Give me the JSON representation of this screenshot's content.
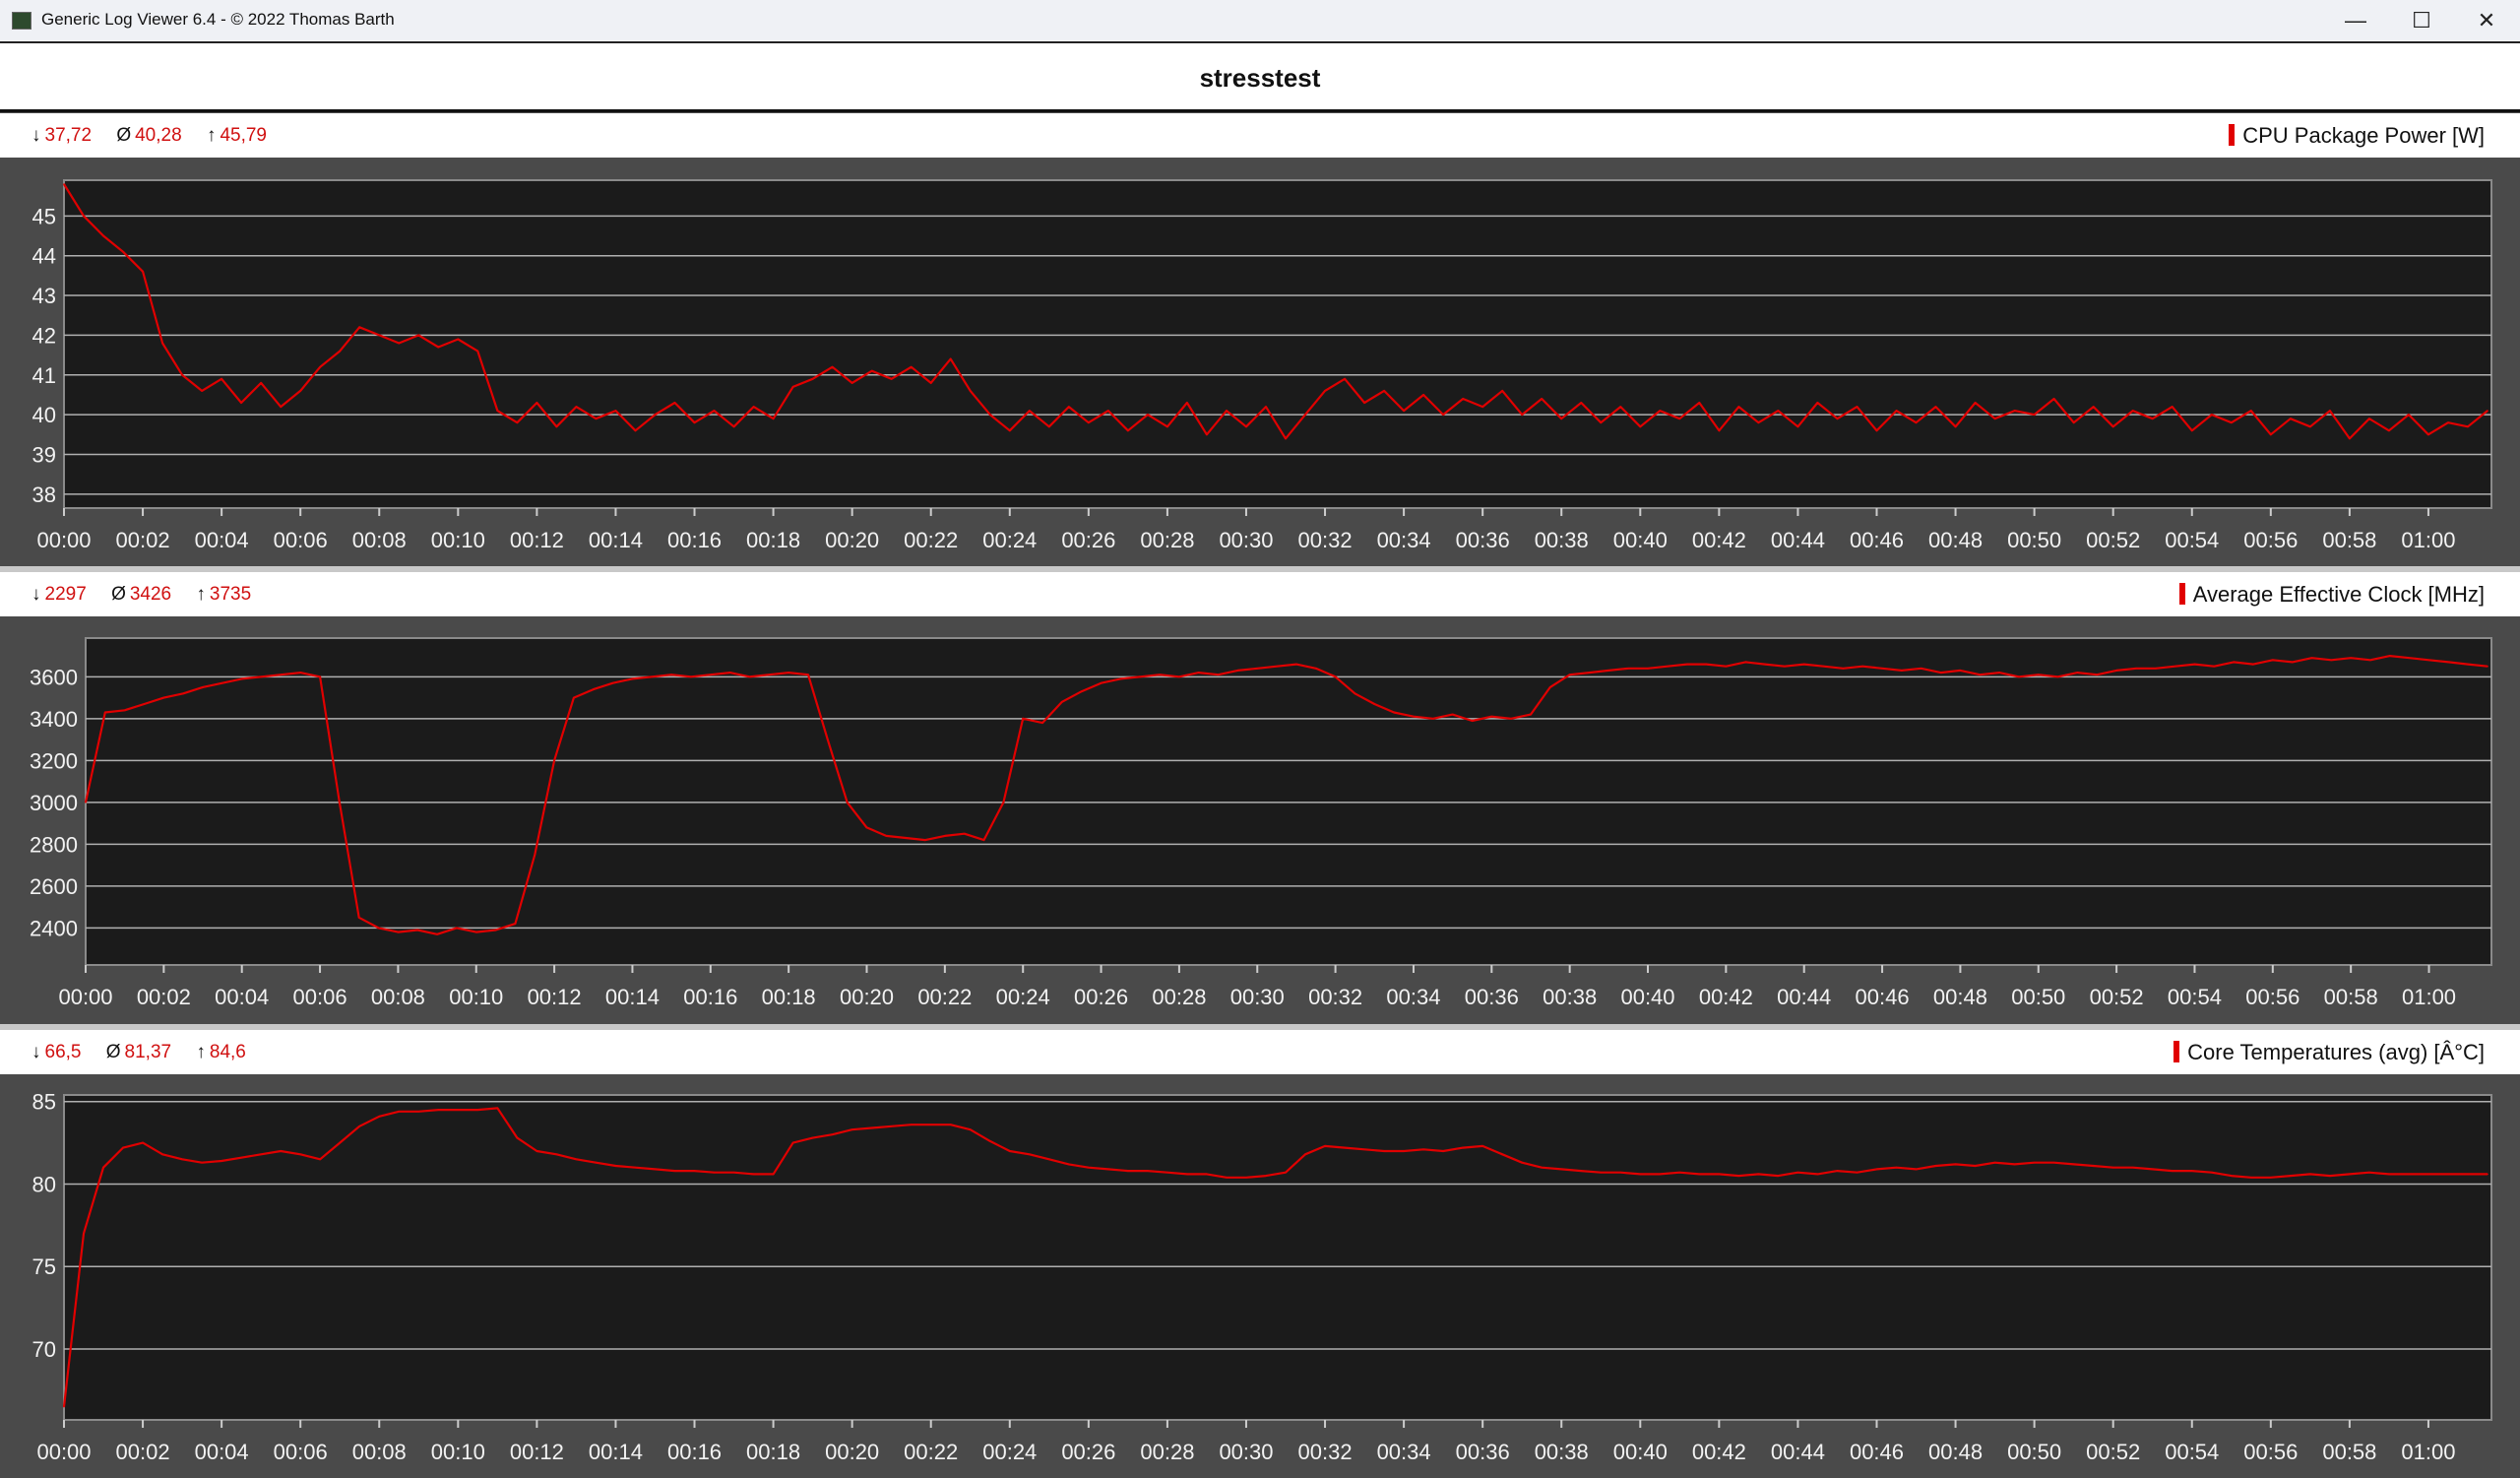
{
  "window": {
    "title": "Generic Log Viewer 6.4 - © 2022 Thomas Barth",
    "controls": {
      "minimize": "—",
      "maximize": "☐",
      "close": "✕"
    }
  },
  "chart_title": "stresstest",
  "colors": {
    "series": "#e00000",
    "plot_bg": "#1b1b1b",
    "panel_bg": "#4a4a4a",
    "grid": "#b0b0b0",
    "stat_values": "#d01010"
  },
  "chart_data": [
    {
      "type": "line",
      "title": "CPU Package Power [W]",
      "stats": {
        "min_symbol": "↓",
        "min": "37,72",
        "avg_symbol": "Ø",
        "avg": "40,28",
        "max_symbol": "↑",
        "max": "45,79"
      },
      "ylim": [
        37.65,
        45.9
      ],
      "yticks": [
        38,
        39,
        40,
        41,
        42,
        43,
        44,
        45
      ],
      "xlim_min": [
        0,
        61.6
      ],
      "xtick_labels": [
        "00:00",
        "00:02",
        "00:04",
        "00:06",
        "00:08",
        "00:10",
        "00:12",
        "00:14",
        "00:16",
        "00:18",
        "00:20",
        "00:22",
        "00:24",
        "00:26",
        "00:28",
        "00:30",
        "00:32",
        "00:34",
        "00:36",
        "00:38",
        "00:40",
        "00:42",
        "00:44",
        "00:46",
        "00:48",
        "00:50",
        "00:52",
        "00:54",
        "00:56",
        "00:58",
        "01:00"
      ],
      "grid": true,
      "x_step_min": 0.5,
      "values": [
        45.8,
        45.0,
        44.5,
        44.1,
        43.6,
        41.8,
        41.0,
        40.6,
        40.9,
        40.3,
        40.8,
        40.2,
        40.6,
        41.2,
        41.6,
        42.2,
        42.0,
        41.8,
        42.0,
        41.7,
        41.9,
        41.6,
        40.1,
        39.8,
        40.3,
        39.7,
        40.2,
        39.9,
        40.1,
        39.6,
        40.0,
        40.3,
        39.8,
        40.1,
        39.7,
        40.2,
        39.9,
        40.7,
        40.9,
        41.2,
        40.8,
        41.1,
        40.9,
        41.2,
        40.8,
        41.4,
        40.6,
        40.0,
        39.6,
        40.1,
        39.7,
        40.2,
        39.8,
        40.1,
        39.6,
        40.0,
        39.7,
        40.3,
        39.5,
        40.1,
        39.7,
        40.2,
        39.4,
        40.0,
        40.6,
        40.9,
        40.3,
        40.6,
        40.1,
        40.5,
        40.0,
        40.4,
        40.2,
        40.6,
        40.0,
        40.4,
        39.9,
        40.3,
        39.8,
        40.2,
        39.7,
        40.1,
        39.9,
        40.3,
        39.6,
        40.2,
        39.8,
        40.1,
        39.7,
        40.3,
        39.9,
        40.2,
        39.6,
        40.1,
        39.8,
        40.2,
        39.7,
        40.3,
        39.9,
        40.1,
        40.0,
        40.4,
        39.8,
        40.2,
        39.7,
        40.1,
        39.9,
        40.2,
        39.6,
        40.0,
        39.8,
        40.1,
        39.5,
        39.9,
        39.7,
        40.1,
        39.4,
        39.9,
        39.6,
        40.0,
        39.5,
        39.8,
        39.7,
        40.1
      ]
    },
    {
      "type": "line",
      "title": "Average Effective Clock [MHz]",
      "stats": {
        "min_symbol": "↓",
        "min": "2297",
        "avg_symbol": "Ø",
        "avg": "3426",
        "max_symbol": "↑",
        "max": "3735"
      },
      "ylim": [
        2223,
        3785
      ],
      "yticks": [
        2400,
        2600,
        2800,
        3000,
        3200,
        3400,
        3600
      ],
      "xlim_min": [
        0,
        61.6
      ],
      "xtick_labels": [
        "00:00",
        "00:02",
        "00:04",
        "00:06",
        "00:08",
        "00:10",
        "00:12",
        "00:14",
        "00:16",
        "00:18",
        "00:20",
        "00:22",
        "00:24",
        "00:26",
        "00:28",
        "00:30",
        "00:32",
        "00:34",
        "00:36",
        "00:38",
        "00:40",
        "00:42",
        "00:44",
        "00:46",
        "00:48",
        "00:50",
        "00:52",
        "00:54",
        "00:56",
        "00:58",
        "01:00"
      ],
      "grid": true,
      "x_step_min": 0.5,
      "values": [
        3000,
        3430,
        3440,
        3470,
        3500,
        3520,
        3550,
        3570,
        3590,
        3600,
        3610,
        3620,
        3600,
        3000,
        2450,
        2400,
        2380,
        2390,
        2370,
        2400,
        2380,
        2390,
        2420,
        2750,
        3200,
        3500,
        3540,
        3570,
        3590,
        3600,
        3610,
        3600,
        3610,
        3620,
        3600,
        3610,
        3620,
        3610,
        3300,
        3000,
        2880,
        2840,
        2830,
        2820,
        2840,
        2850,
        2820,
        3000,
        3400,
        3380,
        3480,
        3530,
        3570,
        3590,
        3600,
        3610,
        3600,
        3620,
        3610,
        3630,
        3640,
        3650,
        3660,
        3640,
        3600,
        3520,
        3470,
        3430,
        3410,
        3400,
        3420,
        3390,
        3410,
        3400,
        3420,
        3550,
        3610,
        3620,
        3630,
        3640,
        3640,
        3650,
        3660,
        3660,
        3650,
        3670,
        3660,
        3650,
        3660,
        3650,
        3640,
        3650,
        3640,
        3630,
        3640,
        3620,
        3630,
        3610,
        3620,
        3600,
        3610,
        3600,
        3620,
        3610,
        3630,
        3640,
        3640,
        3650,
        3660,
        3650,
        3670,
        3660,
        3680,
        3670,
        3690,
        3680,
        3690,
        3680,
        3700,
        3690,
        3680,
        3670,
        3660,
        3650
      ]
    },
    {
      "type": "line",
      "title": "Core Temperatures (avg) [Â°C]",
      "stats": {
        "min_symbol": "↓",
        "min": "66,5",
        "avg_symbol": "Ø",
        "avg": "81,37",
        "max_symbol": "↑",
        "max": "84,6"
      },
      "ylim": [
        65.7,
        85.4
      ],
      "yticks": [
        70,
        75,
        80,
        85
      ],
      "xlim_min": [
        0,
        61.6
      ],
      "xtick_labels": [
        "00:00",
        "00:02",
        "00:04",
        "00:06",
        "00:08",
        "00:10",
        "00:12",
        "00:14",
        "00:16",
        "00:18",
        "00:20",
        "00:22",
        "00:24",
        "00:26",
        "00:28",
        "00:30",
        "00:32",
        "00:34",
        "00:36",
        "00:38",
        "00:40",
        "00:42",
        "00:44",
        "00:46",
        "00:48",
        "00:50",
        "00:52",
        "00:54",
        "00:56",
        "00:58",
        "01:00"
      ],
      "grid": true,
      "x_step_min": 0.5,
      "values": [
        66.5,
        77.0,
        81.0,
        82.2,
        82.5,
        81.8,
        81.5,
        81.3,
        81.4,
        81.6,
        81.8,
        82.0,
        81.8,
        81.5,
        82.5,
        83.5,
        84.1,
        84.4,
        84.4,
        84.5,
        84.5,
        84.5,
        84.6,
        82.8,
        82.0,
        81.8,
        81.5,
        81.3,
        81.1,
        81.0,
        80.9,
        80.8,
        80.8,
        80.7,
        80.7,
        80.6,
        80.6,
        82.5,
        82.8,
        83.0,
        83.3,
        83.4,
        83.5,
        83.6,
        83.6,
        83.6,
        83.3,
        82.6,
        82.0,
        81.8,
        81.5,
        81.2,
        81.0,
        80.9,
        80.8,
        80.8,
        80.7,
        80.6,
        80.6,
        80.4,
        80.4,
        80.5,
        80.7,
        81.8,
        82.3,
        82.2,
        82.1,
        82.0,
        82.0,
        82.1,
        82.0,
        82.2,
        82.3,
        81.8,
        81.3,
        81.0,
        80.9,
        80.8,
        80.7,
        80.7,
        80.6,
        80.6,
        80.7,
        80.6,
        80.6,
        80.5,
        80.6,
        80.5,
        80.7,
        80.6,
        80.8,
        80.7,
        80.9,
        81.0,
        80.9,
        81.1,
        81.2,
        81.1,
        81.3,
        81.2,
        81.3,
        81.3,
        81.2,
        81.1,
        81.0,
        81.0,
        80.9,
        80.8,
        80.8,
        80.7,
        80.5,
        80.4,
        80.4,
        80.5,
        80.6,
        80.5,
        80.6,
        80.7,
        80.6,
        80.6,
        80.6,
        80.6,
        80.6,
        80.6
      ]
    }
  ]
}
